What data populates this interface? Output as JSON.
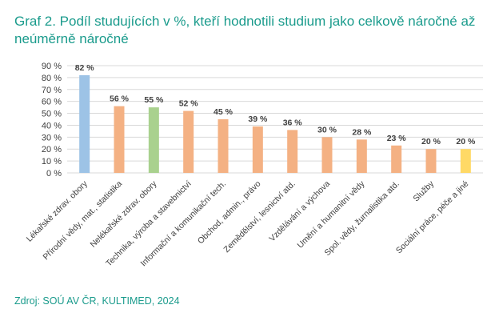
{
  "title": "Graf 2. Podíl studujících v %, kteří hodnotili studium jako celkově náročné až neúměrně náročné",
  "source": "Zdroj: SOÚ AV ČR, KULTIMED, 2024",
  "colors": {
    "title": "#1a9b8c",
    "grid": "#d9d9d9",
    "axis_text": "#404040",
    "label_text": "#404040"
  },
  "chart_data": {
    "type": "bar",
    "title": "Graf 2. Podíl studujících v %, kteří hodnotili studium jako celkově náročné až neúměrně náročné",
    "xlabel": "",
    "ylabel": "",
    "ylim": [
      0,
      90
    ],
    "yticks": [
      0,
      10,
      20,
      30,
      40,
      50,
      60,
      70,
      80,
      90
    ],
    "ytick_labels": [
      "0 %",
      "10 %",
      "20 %",
      "30 %",
      "40 %",
      "50 %",
      "60 %",
      "70 %",
      "80 %",
      "90 %"
    ],
    "grid": true,
    "legend": "none",
    "categories": [
      "Lékařské zdrav. obory",
      "Přírodní vědy, mat., statistika",
      "Nelékařské zdrav. obory",
      "Technika, výroba a stavebnictví",
      "Informační a komunikační tech.",
      "Obchod, admin., právo",
      "Zemědělství, lesnictví atd.",
      "Vzdělávání a výchova",
      "Umění a humanitní vědy",
      "Spol. vědy, žurnalistika atd.",
      "Služby",
      "Sociální práce, péče a jiné"
    ],
    "values": [
      82,
      56,
      55,
      52,
      45,
      39,
      36,
      30,
      28,
      23,
      20,
      20
    ],
    "value_labels": [
      "82 %",
      "56 %",
      "55 %",
      "52 %",
      "45 %",
      "39 %",
      "36 %",
      "30 %",
      "28 %",
      "23 %",
      "20 %",
      "20 %"
    ],
    "bar_colors": [
      "#9dc3e6",
      "#f4b183",
      "#a9d18e",
      "#f4b183",
      "#f4b183",
      "#f4b183",
      "#f4b183",
      "#f4b183",
      "#f4b183",
      "#f4b183",
      "#f4b183",
      "#ffd966"
    ]
  }
}
